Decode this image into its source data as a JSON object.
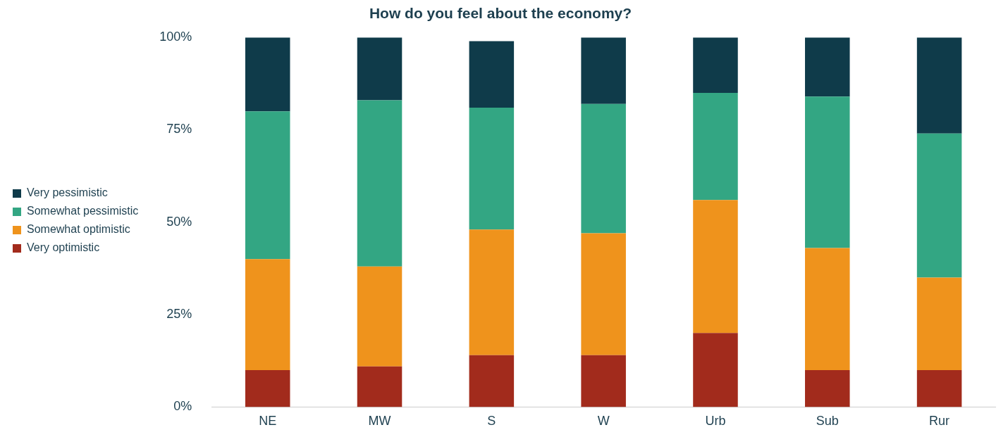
{
  "chart_data": {
    "type": "bar",
    "title": "How do you feel about the economy?",
    "categories": [
      "NE",
      "MW",
      "S",
      "W",
      "Urb",
      "Sub",
      "Rur"
    ],
    "stacked": true,
    "legend": "left",
    "grid": false,
    "ylim": [
      0,
      100
    ],
    "yticks": [
      {
        "value": 0,
        "label": "0%"
      },
      {
        "value": 25,
        "label": "25%"
      },
      {
        "value": 50,
        "label": "50%"
      },
      {
        "value": 75,
        "label": "75%"
      },
      {
        "value": 100,
        "label": "100%"
      }
    ],
    "series": [
      {
        "name": "Very optimistic",
        "color": "#a22b1c",
        "values": [
          10,
          11,
          14,
          14,
          20,
          10,
          10
        ]
      },
      {
        "name": "Somewhat optimistic",
        "color": "#ef931c",
        "values": [
          30,
          27,
          34,
          33,
          36,
          33,
          25
        ]
      },
      {
        "name": "Somewhat pessimistic",
        "color": "#33a683",
        "values": [
          40,
          45,
          33,
          35,
          29,
          41,
          39
        ]
      },
      {
        "name": "Very pessimistic",
        "color": "#0f3b4a",
        "values": [
          20,
          17,
          18,
          18,
          15,
          16,
          26
        ]
      }
    ]
  }
}
